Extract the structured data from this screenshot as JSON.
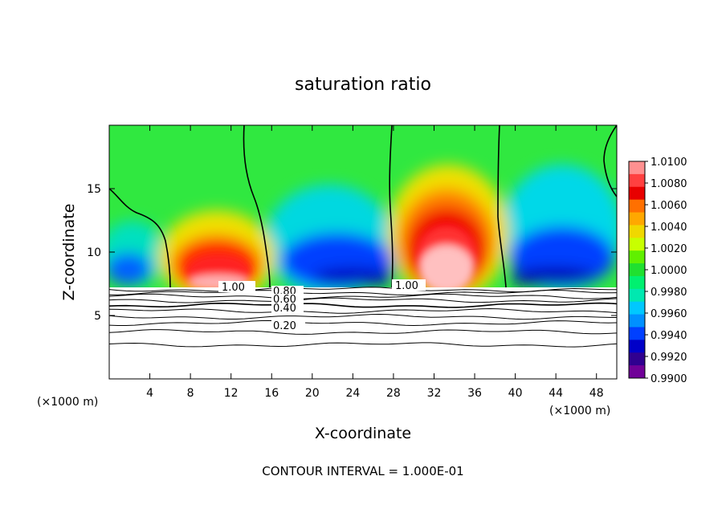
{
  "chart_data": {
    "type": "heatmap",
    "title": "saturation ratio",
    "xlabel": "X-coordinate",
    "ylabel": "Z-coordinate",
    "x_unit_left": "(×1000 m)",
    "x_unit_right": "(×1000 m)",
    "footer": "CONTOUR INTERVAL = 1.000E-01",
    "xlim": [
      0,
      50
    ],
    "ylim": [
      0,
      20
    ],
    "x_ticks": [
      4,
      8,
      12,
      16,
      20,
      24,
      28,
      32,
      36,
      40,
      44,
      48
    ],
    "y_ticks": [
      5,
      10,
      15
    ],
    "colorbar": {
      "levels": [
        "1.0100",
        "1.0080",
        "1.0060",
        "1.0040",
        "1.0020",
        "1.0000",
        "0.9980",
        "0.9960",
        "0.9940",
        "0.9920",
        "0.9900"
      ],
      "colors": [
        "#ff9090",
        "#ff4040",
        "#e80000",
        "#ff7000",
        "#ffa800",
        "#f0d800",
        "#c8ff00",
        "#60f000",
        "#20e030",
        "#00f070",
        "#00e8b0",
        "#00c8ff",
        "#0090ff",
        "#0040ff",
        "#0000c8",
        "#300090",
        "#700098"
      ]
    },
    "contour_labels": [
      "1.00",
      "0.80",
      "0.60",
      "0.40",
      "0.20",
      "1.00"
    ],
    "cloud_base_z": 7.2,
    "contour_levels_below_cloud": [
      1.0,
      0.9,
      0.8,
      0.7,
      0.6,
      0.5,
      0.4,
      0.3,
      0.2,
      0.1
    ],
    "contour_heights_z": [
      7.05,
      6.8,
      6.5,
      6.2,
      5.8,
      5.35,
      4.9,
      4.4,
      3.7,
      2.7
    ]
  }
}
